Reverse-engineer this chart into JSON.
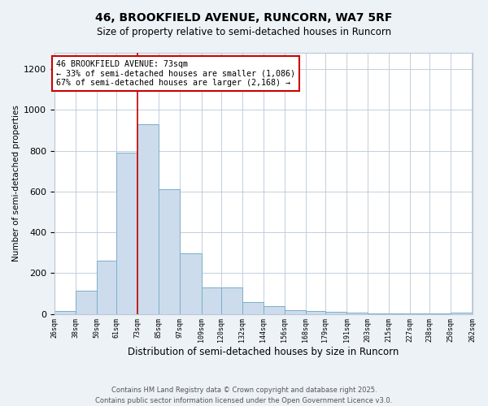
{
  "title_line1": "46, BROOKFIELD AVENUE, RUNCORN, WA7 5RF",
  "title_line2": "Size of property relative to semi-detached houses in Runcorn",
  "xlabel": "Distribution of semi-detached houses by size in Runcorn",
  "ylabel": "Number of semi-detached properties",
  "bar_color": "#ccdcec",
  "bar_edge_color": "#7aaeca",
  "bins": [
    26,
    38,
    50,
    61,
    73,
    85,
    97,
    109,
    120,
    132,
    144,
    156,
    168,
    179,
    191,
    203,
    215,
    227,
    238,
    250,
    262
  ],
  "counts": [
    15,
    115,
    260,
    790,
    930,
    610,
    295,
    130,
    130,
    60,
    40,
    20,
    15,
    10,
    5,
    3,
    2,
    1,
    1,
    5
  ],
  "tick_labels": [
    "26sqm",
    "38sqm",
    "50sqm",
    "61sqm",
    "73sqm",
    "85sqm",
    "97sqm",
    "109sqm",
    "120sqm",
    "132sqm",
    "144sqm",
    "156sqm",
    "168sqm",
    "179sqm",
    "191sqm",
    "203sqm",
    "215sqm",
    "227sqm",
    "238sqm",
    "250sqm",
    "262sqm"
  ],
  "property_size": 73,
  "red_line_color": "#cc0000",
  "annotation_title": "46 BROOKFIELD AVENUE: 73sqm",
  "annotation_line2": "← 33% of semi-detached houses are smaller (1,086)",
  "annotation_line3": "67% of semi-detached houses are larger (2,168) →",
  "annotation_box_color": "#ffffff",
  "annotation_box_edge": "#cc0000",
  "ylim": [
    0,
    1280
  ],
  "yticks": [
    0,
    200,
    400,
    600,
    800,
    1000,
    1200
  ],
  "footer_line1": "Contains HM Land Registry data © Crown copyright and database right 2025.",
  "footer_line2": "Contains public sector information licensed under the Open Government Licence v3.0.",
  "bg_color": "#edf2f7",
  "plot_bg_color": "#ffffff",
  "grid_color": "#b8c8d8"
}
